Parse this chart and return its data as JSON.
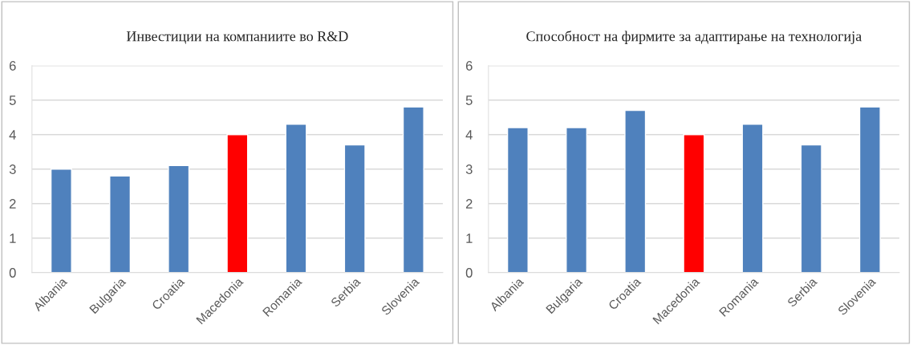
{
  "chart_data": [
    {
      "type": "bar",
      "title": "Инвестиции на компаниите во R&D",
      "categories": [
        "Albania",
        "Bulgaria",
        "Croatia",
        "Macedonia",
        "Romania",
        "Serbia",
        "Slovenia"
      ],
      "values": [
        3.0,
        2.8,
        3.1,
        4.0,
        4.3,
        3.7,
        4.8
      ],
      "colors": [
        "#4f81bd",
        "#4f81bd",
        "#4f81bd",
        "#ff0000",
        "#4f81bd",
        "#4f81bd",
        "#4f81bd"
      ],
      "ylim": [
        0,
        6
      ],
      "yticks": [
        0,
        1,
        2,
        3,
        4,
        5,
        6
      ],
      "grid": "y",
      "legend": false
    },
    {
      "type": "bar",
      "title": "Способност на фирмите за адаптирање на технологија",
      "categories": [
        "Albania",
        "Bulgaria",
        "Croatia",
        "Macedonia",
        "Romania",
        "Serbia",
        "Slovenia"
      ],
      "values": [
        4.2,
        4.2,
        4.7,
        4.0,
        4.3,
        3.7,
        4.8
      ],
      "colors": [
        "#4f81bd",
        "#4f81bd",
        "#4f81bd",
        "#ff0000",
        "#4f81bd",
        "#4f81bd",
        "#4f81bd"
      ],
      "ylim": [
        0,
        6
      ],
      "yticks": [
        0,
        1,
        2,
        3,
        4,
        5,
        6
      ],
      "grid": "y",
      "legend": false
    }
  ]
}
